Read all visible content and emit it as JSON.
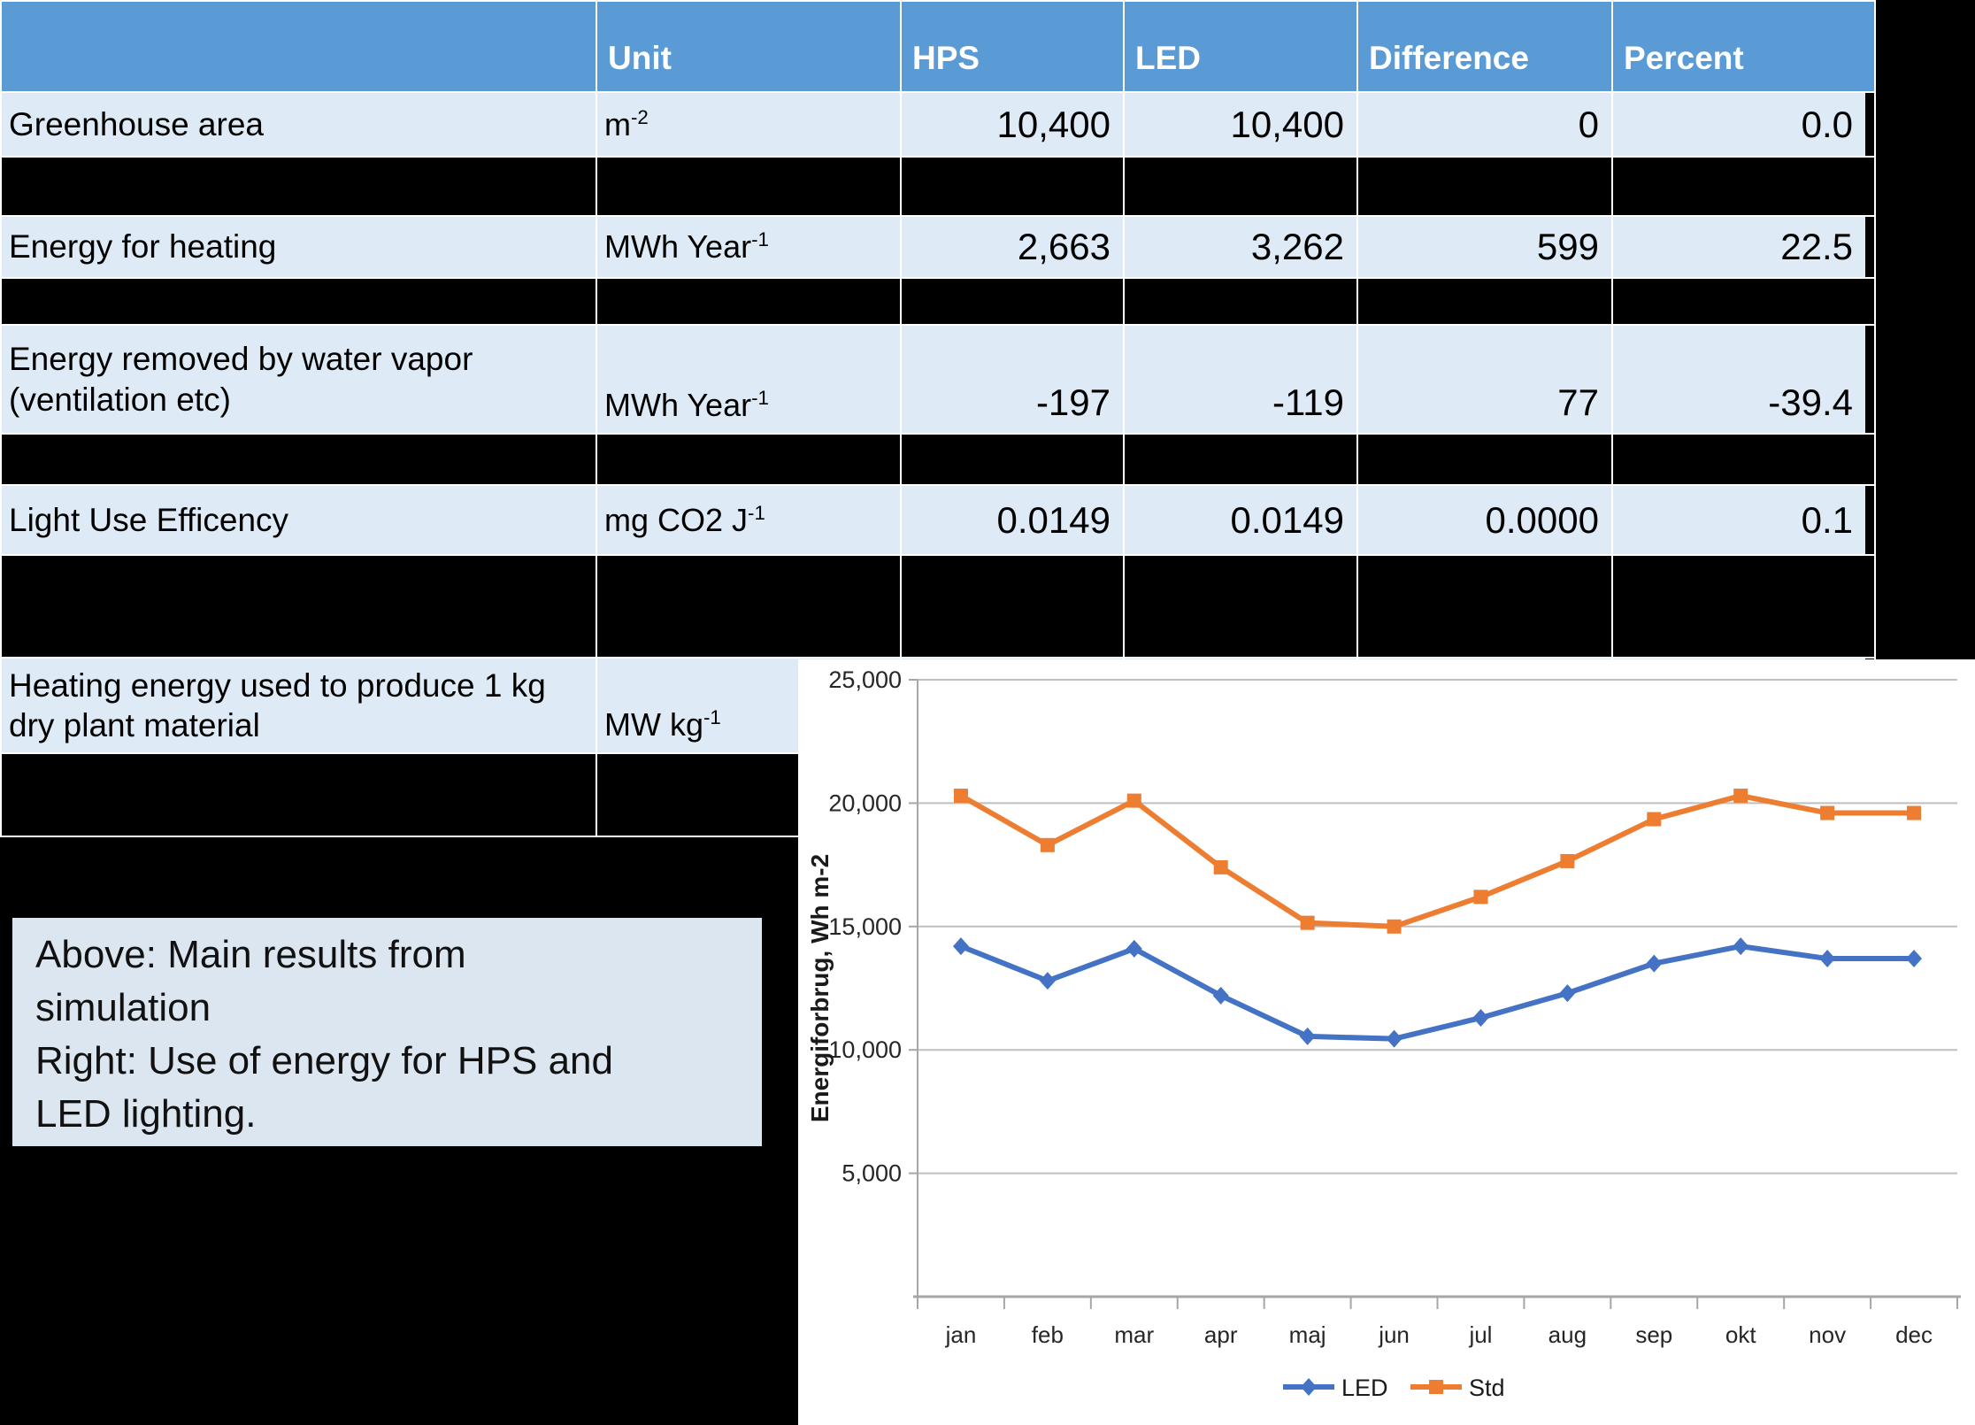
{
  "colors": {
    "header_bg": "#5b9bd5",
    "row_bg": "#deebf7",
    "caption_bg": "#dce6f1",
    "led_line": "#4472C4",
    "std_line": "#ED7D31",
    "gridline": "#bfbfbf",
    "page_bg": "#000000"
  },
  "table": {
    "headers": {
      "col0": "",
      "unit": "Unit",
      "hps": "HPS",
      "led": "LED",
      "difference": "Difference",
      "percent": "Percent"
    },
    "rows": [
      {
        "label": "Greenhouse area",
        "unit": {
          "base": "m",
          "sup": "-2"
        },
        "hps": "10,400",
        "led": "10,400",
        "diff": "0",
        "pct": "0.0"
      },
      {
        "label": "Energy for heating",
        "unit": {
          "base": "MWh Year",
          "sup": "-1"
        },
        "hps": "2,663",
        "led": "3,262",
        "diff": "599",
        "pct": "22.5"
      },
      {
        "label": "Energy removed by water vapor (ventilation etc)",
        "unit": {
          "base": "MWh Year",
          "sup": "-1"
        },
        "hps": "-197",
        "led": "-119",
        "diff": "77",
        "pct": "-39.4"
      },
      {
        "label": "Light Use Efficency",
        "unit": {
          "base": "mg CO2 J",
          "sup": "-1"
        },
        "hps": "0.0149",
        "led": "0.0149",
        "diff": "0.0000",
        "pct": "0.1"
      },
      {
        "label": "Heating energy used to produce 1 kg dry plant material",
        "unit": {
          "base": "MW kg",
          "sup": "-1"
        },
        "hps": "",
        "led": "",
        "diff": "",
        "pct": ""
      }
    ]
  },
  "caption": {
    "lines": [
      "Above: Main results from",
      "simulation",
      "Right: Use of energy for HPS and",
      "LED lighting."
    ]
  },
  "chart_data": [
    {
      "type": "line",
      "title": "",
      "xlabel": "",
      "ylabel": "Energiforbrug, Wh m-2",
      "categories": [
        "jan",
        "feb",
        "mar",
        "apr",
        "maj",
        "jun",
        "jul",
        "aug",
        "sep",
        "okt",
        "nov",
        "dec"
      ],
      "series": [
        {
          "name": "LED",
          "color": "#4472C4",
          "marker": "diamond",
          "values": [
            14200,
            12800,
            14100,
            12200,
            10550,
            10450,
            11300,
            12300,
            13500,
            14200,
            13700,
            13700
          ]
        },
        {
          "name": "Std",
          "color": "#ED7D31",
          "marker": "square",
          "values": [
            20300,
            18300,
            20100,
            17400,
            15150,
            15000,
            16200,
            17650,
            19350,
            20300,
            19600,
            19600
          ]
        }
      ],
      "ylim": [
        0,
        25000
      ],
      "yticks": [
        5000,
        10000,
        15000,
        20000,
        25000
      ],
      "grid": true,
      "legend_position": "bottom"
    },
    {
      "type": "table",
      "columns": [
        "",
        "Unit",
        "HPS",
        "LED",
        "Difference",
        "Percent"
      ],
      "rows": [
        [
          "Greenhouse area",
          "m-2",
          "10,400",
          "10,400",
          "0",
          "0.0"
        ],
        [
          "Energy for heating",
          "MWh Year-1",
          "2,663",
          "3,262",
          "599",
          "22.5"
        ],
        [
          "Energy removed by water vapor (ventilation etc)",
          "MWh Year-1",
          "-197",
          "-119",
          "77",
          "-39.4"
        ],
        [
          "Light Use Efficency",
          "mg CO2 J-1",
          "0.0149",
          "0.0149",
          "0.0000",
          "0.1"
        ],
        [
          "Heating energy used to produce 1 kg dry plant material",
          "MW kg-1",
          "",
          "",
          "",
          ""
        ]
      ]
    }
  ]
}
